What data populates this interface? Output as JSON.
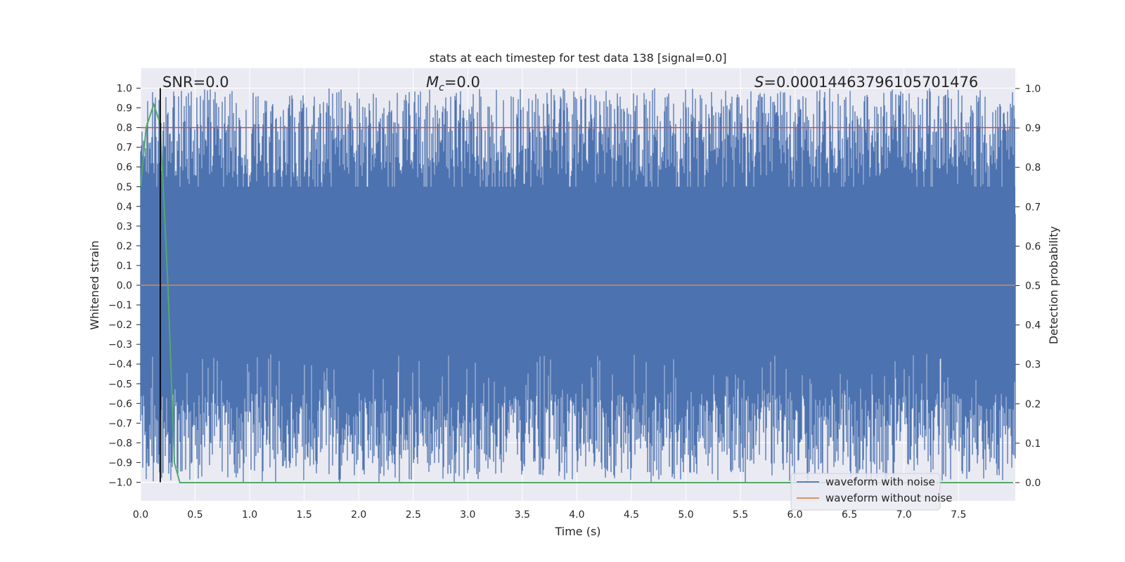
{
  "chart_data": {
    "type": "line",
    "title": "stats at each timestep for test data 138 [signal=0.0]",
    "xlabel": "Time (s)",
    "ylabel": "Whitened strain",
    "y2label": "Detection probability",
    "xlim": [
      0.0,
      8.0
    ],
    "ylim": [
      -1.0,
      1.0
    ],
    "y2lim": [
      0.0,
      1.0
    ],
    "xticks": [
      "0.0",
      "0.5",
      "1.0",
      "1.5",
      "2.0",
      "2.5",
      "3.0",
      "3.5",
      "4.0",
      "4.5",
      "5.0",
      "5.5",
      "6.0",
      "6.5",
      "7.0",
      "7.5"
    ],
    "yticks": [
      "1.0",
      "0.9",
      "0.8",
      "0.7",
      "0.6",
      "0.5",
      "0.4",
      "0.3",
      "0.2",
      "0.1",
      "0.0",
      "−0.1",
      "−0.2",
      "−0.3",
      "−0.4",
      "−0.5",
      "−0.6",
      "−0.7",
      "−0.8",
      "−0.9",
      "−1.0"
    ],
    "y2ticks": [
      "1.0",
      "0.9",
      "0.8",
      "0.7",
      "0.6",
      "0.5",
      "0.4",
      "0.3",
      "0.2",
      "0.1",
      "0.0"
    ],
    "annotations": {
      "snr": "SNR=0.0",
      "mc_symbol": "M",
      "mc_sub": "c",
      "mc_value": "=0.0",
      "s_symbol": "S",
      "s_value": "=0.00014463796105701476"
    },
    "legend": {
      "placement": "bottom-right",
      "entries": [
        {
          "label": "waveform with noise",
          "color": "#4c72b0"
        },
        {
          "label": "waveform without noise",
          "color": "#dd8452"
        }
      ]
    },
    "series": [
      {
        "name": "waveform with noise",
        "color": "#4c72b0",
        "style": "dense noise filling y range -1.0 to 1.0"
      },
      {
        "name": "waveform without noise",
        "color": "#dd8452",
        "values_constant": 0.0
      },
      {
        "color": "#55a868",
        "axis": "right",
        "x": [
          0.0,
          0.05,
          0.12,
          0.18,
          0.25,
          0.31,
          0.36,
          0.45,
          8.0
        ],
        "y": [
          0.75,
          0.9,
          0.96,
          0.91,
          0.5,
          0.05,
          0.0,
          0.0,
          0.0
        ]
      },
      {
        "color": "#c44e52",
        "axis": "left",
        "values_constant": 0.8
      }
    ],
    "vline_x": 0.18,
    "grid": true,
    "colors": {
      "axes_bg": "#eaeaf2",
      "grid": "#ffffff",
      "noise": "#4c72b0",
      "clean": "#dd8452",
      "prob": "#55a868",
      "threshold": "#c44e52",
      "vline": "#000000"
    }
  }
}
